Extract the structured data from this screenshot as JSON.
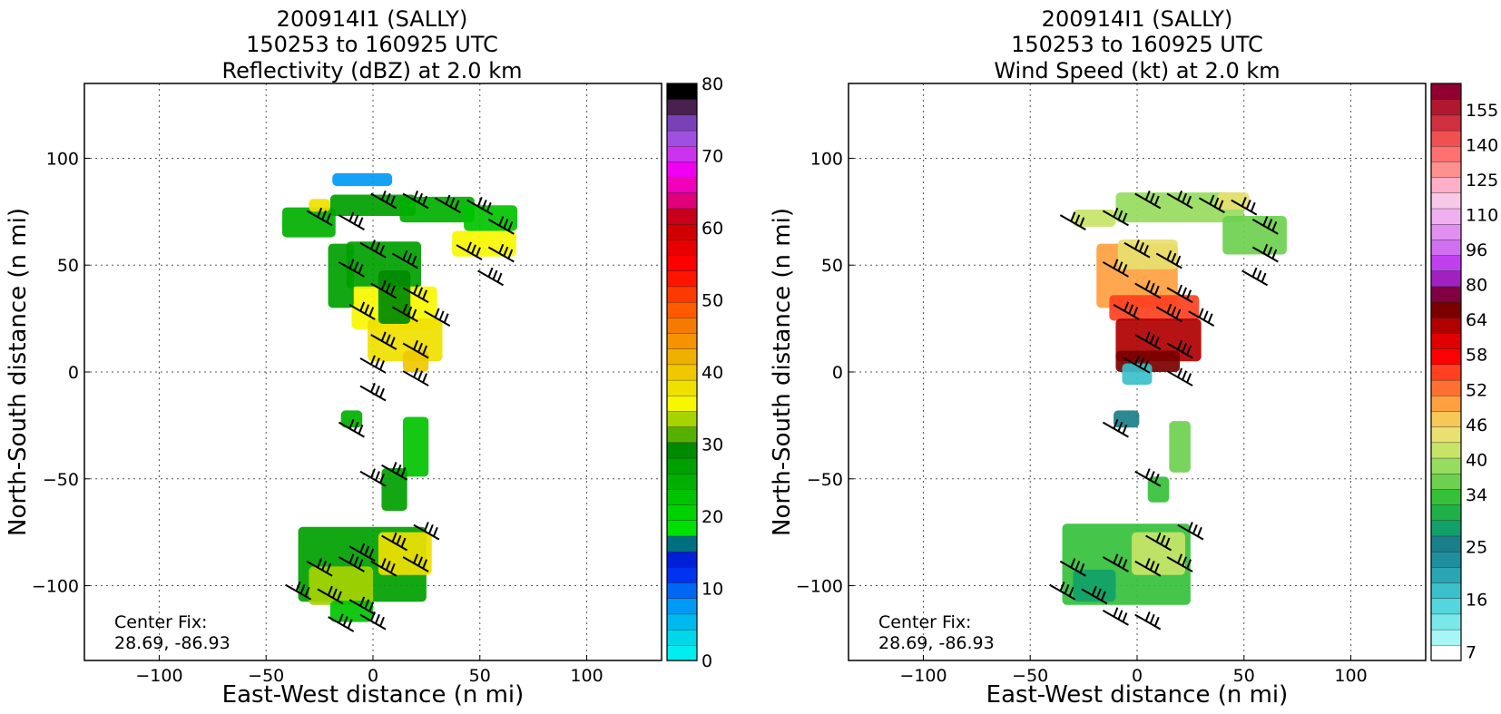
{
  "figure": {
    "background": "#ffffff"
  },
  "chart_data": [
    {
      "type": "heatmap",
      "title_lines": [
        "200914I1 (SALLY)",
        "150253 to 160925 UTC",
        "Reflectivity (dBZ) at 2.0 km"
      ],
      "xlabel": "East-West distance (n mi)",
      "ylabel": "North-South distance (n mi)",
      "xlim": [
        -135,
        135
      ],
      "ylim": [
        -135,
        135
      ],
      "xticks": [
        -100,
        -50,
        0,
        50,
        100
      ],
      "yticks": [
        -100,
        -50,
        0,
        50,
        100
      ],
      "grid": true,
      "annotation_lines": [
        "Center Fix:",
        "28.69, -86.93"
      ],
      "colorbar": {
        "label_values": [
          0,
          10,
          20,
          30,
          40,
          50,
          60,
          70,
          80
        ],
        "min": 0,
        "max": 80,
        "colors": [
          "#00eeee",
          "#00d7e8",
          "#00b9f0",
          "#009af5",
          "#0067f5",
          "#0033f0",
          "#0020d8",
          "#007080",
          "#00e000",
          "#00d200",
          "#00c300",
          "#00b000",
          "#00a000",
          "#008a00",
          "#55b000",
          "#a6d400",
          "#f7f700",
          "#f0e000",
          "#f0c800",
          "#f0b000",
          "#f59400",
          "#f57a00",
          "#ff5a00",
          "#ff3a00",
          "#ff1400",
          "#ff0000",
          "#e80000",
          "#d00000",
          "#c8001a",
          "#e0007a",
          "#f000b8",
          "#f000f0",
          "#cc33ee",
          "#a050e0",
          "#7a40b8",
          "#4a2050",
          "#000000"
        ]
      },
      "cells": [
        {
          "x": -30,
          "y": 70,
          "w": 25,
          "h": 14,
          "v": 25
        },
        {
          "x": 0,
          "y": 78,
          "w": 40,
          "h": 10,
          "v": 28
        },
        {
          "x": 30,
          "y": 76,
          "w": 35,
          "h": 12,
          "v": 24
        },
        {
          "x": 55,
          "y": 72,
          "w": 25,
          "h": 12,
          "v": 22
        },
        {
          "x": -5,
          "y": 90,
          "w": 28,
          "h": 6,
          "v": 8
        },
        {
          "x": 52,
          "y": 60,
          "w": 30,
          "h": 12,
          "v": 36
        },
        {
          "x": -25,
          "y": 78,
          "w": 10,
          "h": 6,
          "v": 38
        },
        {
          "x": 5,
          "y": 50,
          "w": 35,
          "h": 22,
          "v": 27
        },
        {
          "x": 10,
          "y": 30,
          "w": 40,
          "h": 20,
          "v": 35
        },
        {
          "x": 15,
          "y": 15,
          "w": 35,
          "h": 20,
          "v": 37
        },
        {
          "x": 10,
          "y": 35,
          "w": 15,
          "h": 25,
          "v": 30
        },
        {
          "x": 20,
          "y": 5,
          "w": 12,
          "h": 10,
          "v": 40
        },
        {
          "x": -15,
          "y": 45,
          "w": 12,
          "h": 30,
          "v": 28
        },
        {
          "x": -10,
          "y": -22,
          "w": 10,
          "h": 8,
          "v": 24
        },
        {
          "x": 20,
          "y": -35,
          "w": 12,
          "h": 28,
          "v": 22
        },
        {
          "x": 10,
          "y": -55,
          "w": 12,
          "h": 20,
          "v": 26
        },
        {
          "x": -5,
          "y": -90,
          "w": 60,
          "h": 35,
          "v": 28
        },
        {
          "x": 15,
          "y": -85,
          "w": 25,
          "h": 20,
          "v": 37
        },
        {
          "x": -15,
          "y": -100,
          "w": 30,
          "h": 18,
          "v": 33
        },
        {
          "x": -10,
          "y": -112,
          "w": 20,
          "h": 10,
          "v": 22
        }
      ],
      "barbs": [
        {
          "x": -25,
          "y": 72
        },
        {
          "x": -10,
          "y": 70
        },
        {
          "x": 5,
          "y": 80
        },
        {
          "x": 20,
          "y": 80
        },
        {
          "x": 35,
          "y": 78
        },
        {
          "x": 50,
          "y": 77
        },
        {
          "x": 60,
          "y": 68
        },
        {
          "x": 45,
          "y": 56
        },
        {
          "x": 60,
          "y": 55
        },
        {
          "x": 55,
          "y": 44
        },
        {
          "x": 0,
          "y": 57
        },
        {
          "x": 15,
          "y": 52
        },
        {
          "x": -10,
          "y": 48
        },
        {
          "x": 5,
          "y": 38
        },
        {
          "x": 20,
          "y": 36
        },
        {
          "x": -5,
          "y": 28
        },
        {
          "x": 15,
          "y": 27
        },
        {
          "x": 30,
          "y": 25
        },
        {
          "x": 5,
          "y": 14
        },
        {
          "x": 20,
          "y": 10
        },
        {
          "x": 0,
          "y": 3
        },
        {
          "x": 20,
          "y": -3
        },
        {
          "x": 0,
          "y": -10
        },
        {
          "x": -10,
          "y": -27
        },
        {
          "x": 0,
          "y": -50
        },
        {
          "x": 10,
          "y": -47
        },
        {
          "x": -5,
          "y": -85
        },
        {
          "x": 10,
          "y": -80
        },
        {
          "x": 25,
          "y": -75
        },
        {
          "x": -25,
          "y": -92
        },
        {
          "x": -10,
          "y": -90
        },
        {
          "x": 5,
          "y": -92
        },
        {
          "x": 20,
          "y": -90
        },
        {
          "x": -35,
          "y": -103
        },
        {
          "x": -20,
          "y": -105
        },
        {
          "x": -5,
          "y": -110
        },
        {
          "x": -15,
          "y": -118
        },
        {
          "x": 0,
          "y": -117
        }
      ]
    },
    {
      "type": "heatmap",
      "title_lines": [
        "200914I1 (SALLY)",
        "150253 to 160925 UTC",
        "Wind Speed (kt) at 2.0 km"
      ],
      "xlabel": "East-West distance (n mi)",
      "ylabel": "North-South distance (n mi)",
      "xlim": [
        -135,
        135
      ],
      "ylim": [
        -135,
        135
      ],
      "xticks": [
        -100,
        -50,
        0,
        50,
        100
      ],
      "yticks": [
        -100,
        -50,
        0,
        50,
        100
      ],
      "grid": true,
      "annotation_lines": [
        "Center Fix:",
        "28.69, -86.93"
      ],
      "colorbar": {
        "label_values": [
          7,
          16,
          25,
          34,
          40,
          46,
          52,
          58,
          64,
          80,
          96,
          110,
          125,
          140,
          155
        ],
        "label_slots": [
          0,
          3,
          6,
          9,
          11,
          13,
          15,
          17,
          19,
          21,
          23,
          25,
          27,
          29,
          31
        ],
        "slots": 33,
        "colors": [
          "#ffffff",
          "#a8f5f5",
          "#7ae8ea",
          "#55d6dd",
          "#3bbfca",
          "#2aa5b3",
          "#1f8f9f",
          "#1a7f8a",
          "#12a06a",
          "#1fb04a",
          "#35c03a",
          "#6ed050",
          "#96dc60",
          "#c8e468",
          "#e8e070",
          "#f5c858",
          "#ffa040",
          "#ff7030",
          "#ff4020",
          "#ff0000",
          "#e00000",
          "#b00000",
          "#7a0000",
          "#800040",
          "#a020c0",
          "#c040f0",
          "#d070f0",
          "#e090f0",
          "#f0b0f0",
          "#f8c8e8",
          "#ffb0c8",
          "#ff9090",
          "#ff7070",
          "#f05050",
          "#d03040",
          "#b01830",
          "#900030"
        ]
      },
      "cells": [
        {
          "x": 20,
          "y": 77,
          "w": 60,
          "h": 14,
          "v": 42
        },
        {
          "x": 55,
          "y": 64,
          "w": 30,
          "h": 18,
          "v": 40
        },
        {
          "x": -20,
          "y": 72,
          "w": 20,
          "h": 8,
          "v": 47
        },
        {
          "x": 45,
          "y": 80,
          "w": 15,
          "h": 8,
          "v": 48
        },
        {
          "x": 0,
          "y": 45,
          "w": 38,
          "h": 30,
          "v": 55
        },
        {
          "x": 5,
          "y": 55,
          "w": 28,
          "h": 14,
          "v": 50
        },
        {
          "x": 8,
          "y": 30,
          "w": 42,
          "h": 12,
          "v": 60
        },
        {
          "x": 10,
          "y": 15,
          "w": 40,
          "h": 20,
          "v": 80
        },
        {
          "x": 5,
          "y": 5,
          "w": 30,
          "h": 10,
          "v": 90
        },
        {
          "x": 0,
          "y": -1,
          "w": 14,
          "h": 10,
          "v": 20
        },
        {
          "x": -5,
          "y": -22,
          "w": 12,
          "h": 8,
          "v": 28
        },
        {
          "x": 20,
          "y": -35,
          "w": 10,
          "h": 24,
          "v": 40
        },
        {
          "x": 10,
          "y": -55,
          "w": 10,
          "h": 12,
          "v": 38
        },
        {
          "x": -5,
          "y": -90,
          "w": 60,
          "h": 38,
          "v": 38
        },
        {
          "x": 10,
          "y": -85,
          "w": 25,
          "h": 20,
          "v": 45
        },
        {
          "x": -20,
          "y": -100,
          "w": 20,
          "h": 15,
          "v": 30
        }
      ],
      "barbs": [
        {
          "x": 5,
          "y": 80
        },
        {
          "x": 20,
          "y": 80
        },
        {
          "x": 35,
          "y": 78
        },
        {
          "x": 50,
          "y": 77
        },
        {
          "x": 60,
          "y": 68
        },
        {
          "x": 60,
          "y": 55
        },
        {
          "x": 55,
          "y": 44
        },
        {
          "x": -30,
          "y": 70
        },
        {
          "x": -10,
          "y": 72
        },
        {
          "x": 0,
          "y": 57
        },
        {
          "x": 15,
          "y": 52
        },
        {
          "x": -10,
          "y": 48
        },
        {
          "x": 5,
          "y": 38
        },
        {
          "x": 20,
          "y": 36
        },
        {
          "x": -5,
          "y": 28
        },
        {
          "x": 15,
          "y": 27
        },
        {
          "x": 30,
          "y": 25
        },
        {
          "x": 5,
          "y": 14
        },
        {
          "x": 20,
          "y": 10
        },
        {
          "x": 0,
          "y": 3
        },
        {
          "x": 20,
          "y": -3
        },
        {
          "x": -10,
          "y": -27
        },
        {
          "x": 5,
          "y": -50
        },
        {
          "x": 10,
          "y": -80
        },
        {
          "x": 25,
          "y": -75
        },
        {
          "x": -30,
          "y": -92
        },
        {
          "x": -10,
          "y": -90
        },
        {
          "x": 5,
          "y": -92
        },
        {
          "x": 20,
          "y": -90
        },
        {
          "x": -35,
          "y": -103
        },
        {
          "x": -20,
          "y": -105
        },
        {
          "x": -10,
          "y": -115
        },
        {
          "x": 5,
          "y": -117
        }
      ]
    }
  ]
}
